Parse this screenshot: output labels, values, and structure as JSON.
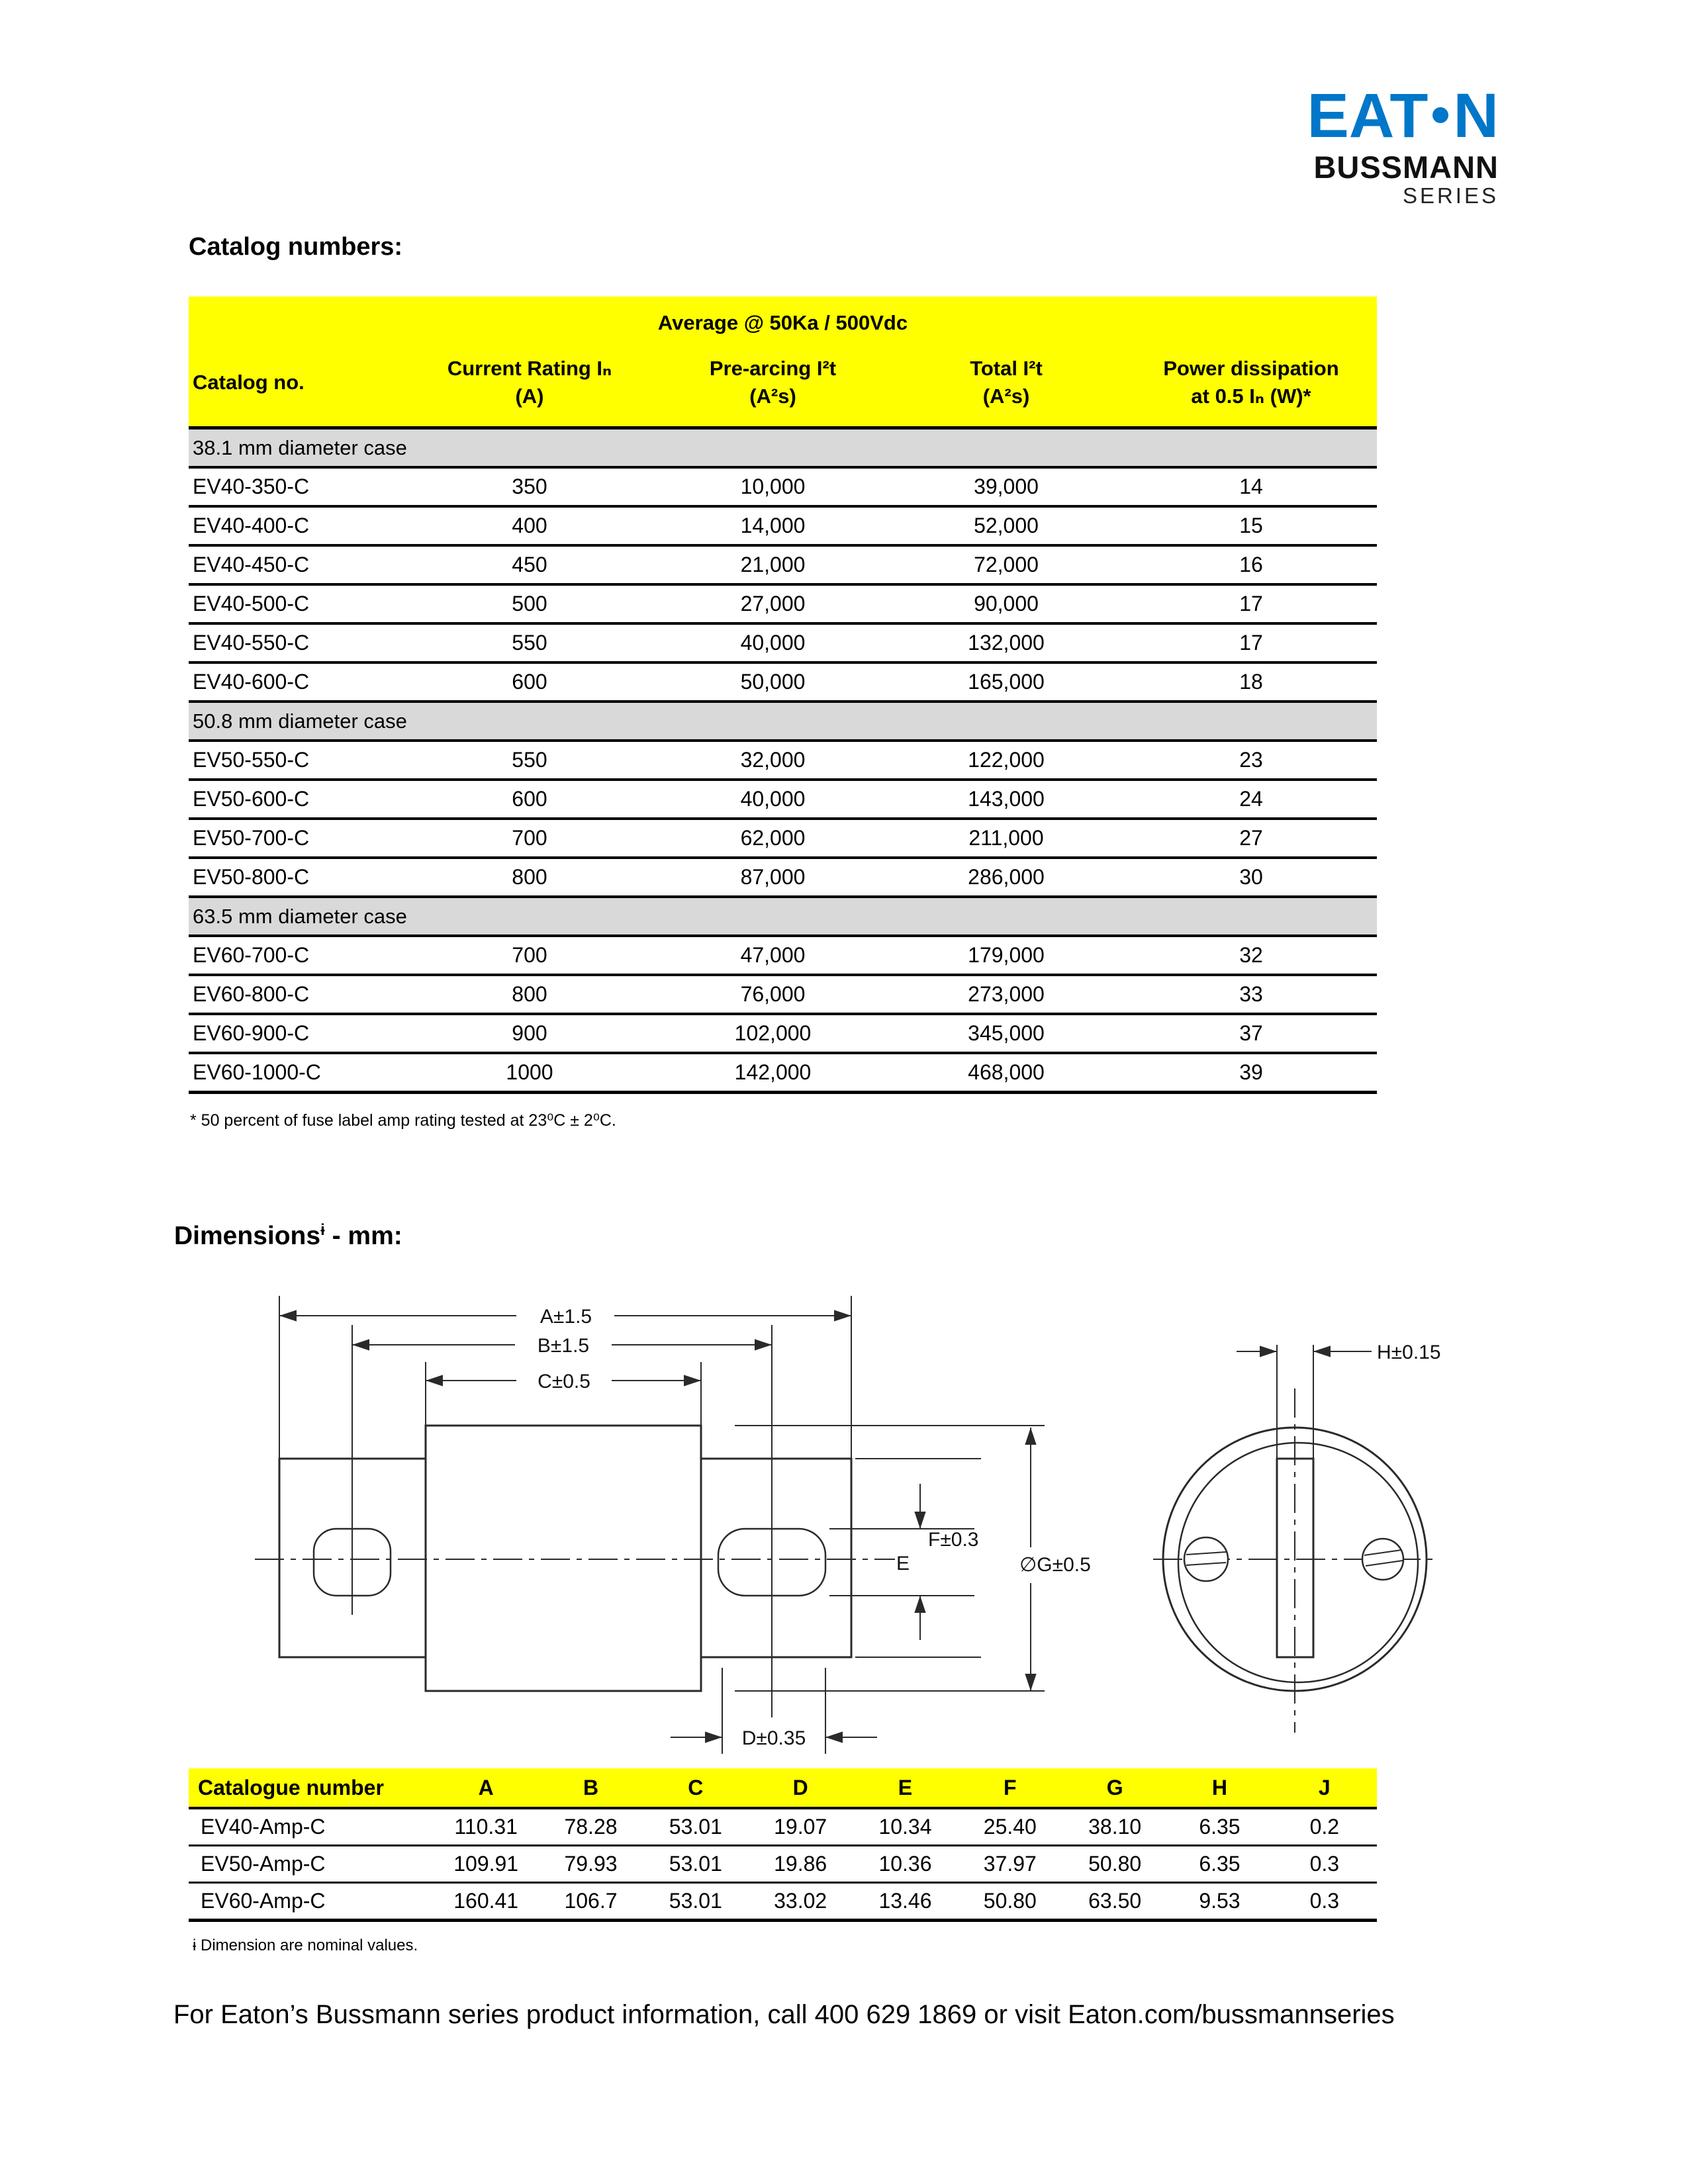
{
  "logo": {
    "brand": "EAT",
    "brand_end": "N",
    "line1": "BUSSMANN",
    "line2": "SERIES"
  },
  "catalog": {
    "heading": "Catalog numbers:",
    "table": {
      "span_header": "Average @ 50Ka / 500Vdc",
      "columns": [
        {
          "line1": "Catalog no.",
          "line2": ""
        },
        {
          "line1": "Current Rating Iₙ",
          "line2": "(A)"
        },
        {
          "line1": "Pre-arcing I²t",
          "line2": "(A²s)"
        },
        {
          "line1": "Total I²t",
          "line2": "(A²s)"
        },
        {
          "line1": "Power dissipation",
          "line2": "at 0.5 Iₙ (W)*"
        }
      ],
      "groups": [
        {
          "label": "38.1 mm diameter case",
          "rows": [
            [
              "EV40-350-C",
              "350",
              "10,000",
              "39,000",
              "14"
            ],
            [
              "EV40-400-C",
              "400",
              "14,000",
              "52,000",
              "15"
            ],
            [
              "EV40-450-C",
              "450",
              "21,000",
              "72,000",
              "16"
            ],
            [
              "EV40-500-C",
              "500",
              "27,000",
              "90,000",
              "17"
            ],
            [
              "EV40-550-C",
              "550",
              "40,000",
              "132,000",
              "17"
            ],
            [
              "EV40-600-C",
              "600",
              "50,000",
              "165,000",
              "18"
            ]
          ]
        },
        {
          "label": "50.8 mm diameter case",
          "rows": [
            [
              "EV50-550-C",
              "550",
              "32,000",
              "122,000",
              "23"
            ],
            [
              "EV50-600-C",
              "600",
              "40,000",
              "143,000",
              "24"
            ],
            [
              "EV50-700-C",
              "700",
              "62,000",
              "211,000",
              "27"
            ],
            [
              "EV50-800-C",
              "800",
              "87,000",
              "286,000",
              "30"
            ]
          ]
        },
        {
          "label": "63.5 mm diameter case",
          "rows": [
            [
              "EV60-700-C",
              "700",
              "47,000",
              "179,000",
              "32"
            ],
            [
              "EV60-800-C",
              "800",
              "76,000",
              "273,000",
              "33"
            ],
            [
              "EV60-900-C",
              "900",
              "102,000",
              "345,000",
              "37"
            ],
            [
              "EV60-1000-C",
              "1000",
              "142,000",
              "468,000",
              "39"
            ]
          ]
        }
      ],
      "footnote": "* 50 percent of fuse label amp rating tested at 23⁰C ± 2⁰C."
    }
  },
  "dimensions": {
    "heading": {
      "text": "Dimensions",
      "sup": "ɨ",
      "rest": " - mm:"
    },
    "diagram": {
      "labels": {
        "a": "A±1.5",
        "b": "B±1.5",
        "c": "C±0.5",
        "d": "D±0.35",
        "e": "E",
        "f": "F±0.3",
        "g": "∅G±0.5",
        "h": "H±0.15"
      }
    },
    "table": {
      "columns": [
        "Catalogue number",
        "A",
        "B",
        "C",
        "D",
        "E",
        "F",
        "G",
        "H",
        "J"
      ],
      "rows": [
        [
          "EV40-Amp-C",
          "110.31",
          "78.28",
          "53.01",
          "19.07",
          "10.34",
          "25.40",
          "38.10",
          "6.35",
          "0.2"
        ],
        [
          "EV50-Amp-C",
          "109.91",
          "79.93",
          "53.01",
          "19.86",
          "10.36",
          "37.97",
          "50.80",
          "6.35",
          "0.3"
        ],
        [
          "EV60-Amp-C",
          "160.41",
          "106.7",
          "53.01",
          "33.02",
          "13.46",
          "50.80",
          "63.50",
          "9.53",
          "0.3"
        ]
      ]
    },
    "footnote": "ɨ Dimension are nominal values."
  },
  "page": {
    "footer": "For Eaton’s Bussmann series product information, call 400 629 1869 or visit Eaton.com/bussmannseries"
  },
  "colors": {
    "header_yellow": "#FFFF00",
    "section_gray": "#D9D9D9",
    "eaton_blue": "#0077C8"
  }
}
